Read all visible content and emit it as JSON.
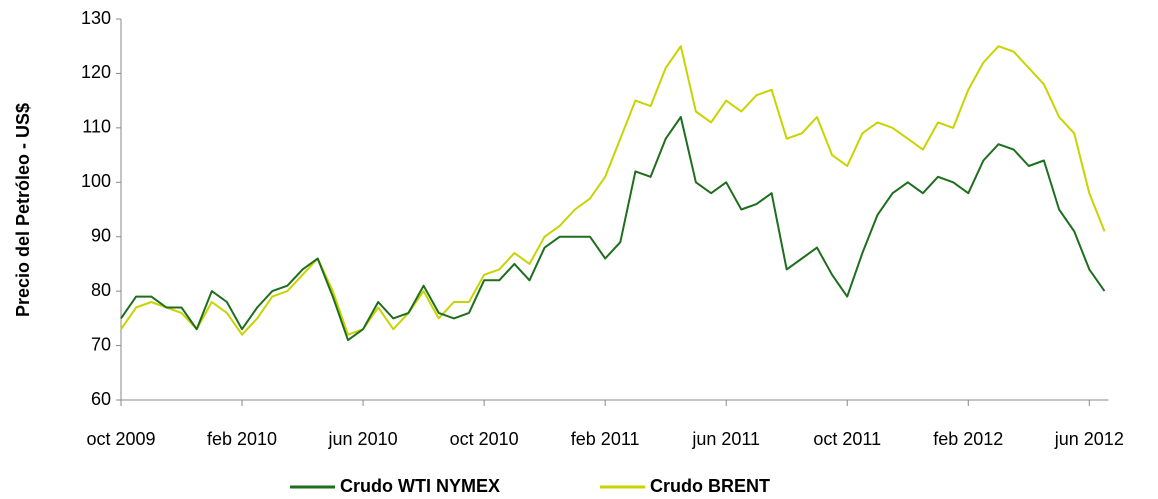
{
  "chart_data": {
    "type": "line",
    "y_label": "Precio del Petróleo - US$",
    "categories": [
      "oct 2009",
      null,
      null,
      null,
      null,
      null,
      null,
      null,
      "feb 2010",
      null,
      null,
      null,
      null,
      null,
      null,
      null,
      "jun 2010",
      null,
      null,
      null,
      null,
      null,
      null,
      null,
      "oct 2010",
      null,
      null,
      null,
      null,
      null,
      null,
      null,
      "feb 2011",
      null,
      null,
      null,
      null,
      null,
      null,
      null,
      "jun 2011",
      null,
      null,
      null,
      null,
      null,
      null,
      null,
      "oct 2011",
      null,
      null,
      null,
      null,
      null,
      null,
      null,
      "feb 2012",
      null,
      null,
      null,
      null,
      null,
      null,
      null,
      "jun 2012",
      null
    ],
    "series": [
      {
        "name": "Crudo  WTI NYMEX",
        "color": "#1e6e1e",
        "values": [
          75,
          79,
          79,
          77,
          77,
          73,
          80,
          78,
          73,
          77,
          80,
          81,
          84,
          86,
          79,
          71,
          73,
          78,
          75,
          76,
          81,
          76,
          75,
          76,
          82,
          82,
          85,
          82,
          88,
          90,
          90,
          90,
          86,
          89,
          102,
          101,
          108,
          112,
          100,
          98,
          100,
          95,
          96,
          98,
          84,
          86,
          88,
          83,
          79,
          87,
          94,
          98,
          100,
          98,
          101,
          100,
          98,
          104,
          107,
          106,
          103,
          104,
          95,
          91,
          84,
          80
        ]
      },
      {
        "name": "Crudo BRENT",
        "color": "#c8d400",
        "values": [
          73,
          77,
          78,
          77,
          76,
          73,
          78,
          76,
          72,
          75,
          79,
          80,
          83,
          86,
          80,
          72,
          73,
          77,
          73,
          76,
          80,
          75,
          78,
          78,
          83,
          84,
          87,
          85,
          90,
          92,
          95,
          97,
          101,
          108,
          115,
          114,
          121,
          125,
          113,
          111,
          115,
          113,
          116,
          117,
          108,
          109,
          112,
          105,
          103,
          109,
          111,
          110,
          108,
          106,
          111,
          110,
          117,
          122,
          125,
          124,
          121,
          118,
          112,
          109,
          98,
          91
        ]
      }
    ],
    "ylim": [
      60,
      130
    ],
    "yticks": [
      60,
      70,
      80,
      90,
      100,
      110,
      120,
      130
    ],
    "grid": false,
    "legend": "bottom"
  }
}
